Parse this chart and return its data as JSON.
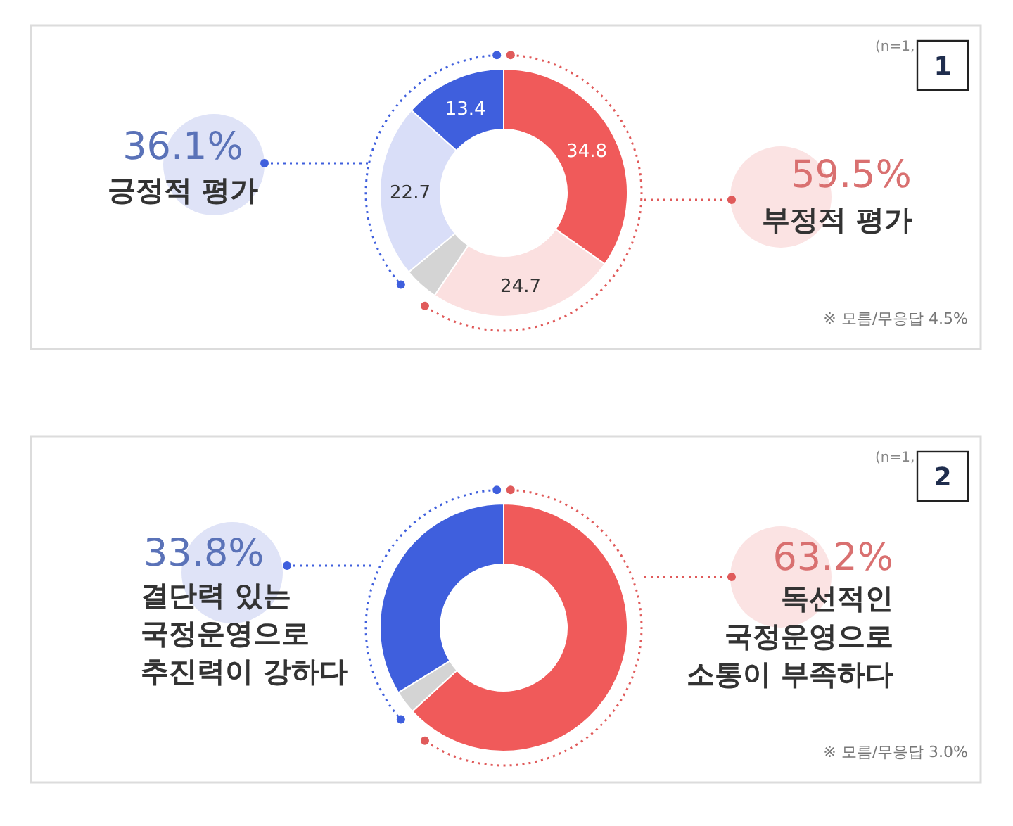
{
  "chart_data": [
    {
      "type": "donut",
      "categories": [
        null,
        null,
        null,
        null,
        null
      ],
      "values": [
        34.8,
        24.7,
        4.5,
        22.7,
        13.4
      ],
      "colors": [
        "#f05a5a",
        "#fbe0e0",
        "#d4d4d4",
        "#d9def8",
        "#3f5fdd"
      ],
      "value_labels": [
        "34.8",
        "24.7",
        null,
        "22.7",
        "13.4"
      ],
      "annotations": [
        "36.1%",
        "긍정적 평가",
        "59.5%",
        "부정적 평가",
        "※ 모름/무응답 4.5%",
        "(n=1,",
        "1"
      ]
    },
    {
      "type": "donut",
      "categories": [
        null,
        null,
        null
      ],
      "values": [
        63.2,
        3.0,
        33.8
      ],
      "colors": [
        "#f05a5a",
        "#d4d4d4",
        "#3f5fdd"
      ],
      "annotations": [
        "33.8%",
        "결단력 있는\n국정운영으로\n추진력이 강하다",
        "63.2%",
        "독선적인\n국정운영으로\n소통이 부족하다",
        "※ 모름/무응답 3.0%",
        "(n=1,",
        "2"
      ]
    }
  ]
}
